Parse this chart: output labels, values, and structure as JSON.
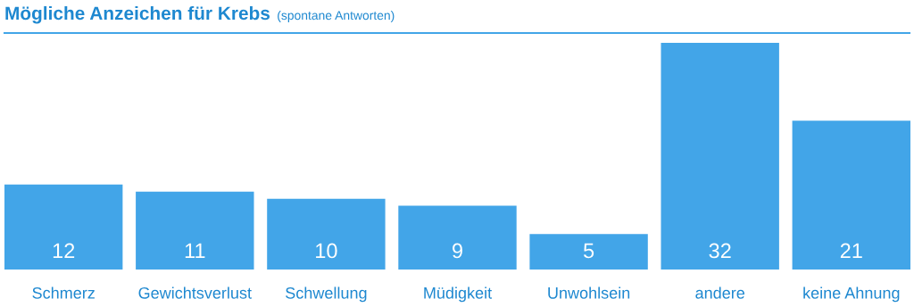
{
  "chart_data": {
    "type": "bar",
    "title": "Mögliche Anzeichen für Krebs",
    "subtitle": "(spontane Antworten)",
    "categories": [
      "Schmerz",
      "Gewichtsverlust",
      "Schwellung",
      "Müdigkeit",
      "Unwohlsein",
      "andere",
      "keine Ahnung"
    ],
    "values": [
      12,
      11,
      10,
      9,
      5,
      32,
      21
    ],
    "color": "#42a5e8",
    "data_labels": true,
    "grid": false,
    "legend": false
  }
}
